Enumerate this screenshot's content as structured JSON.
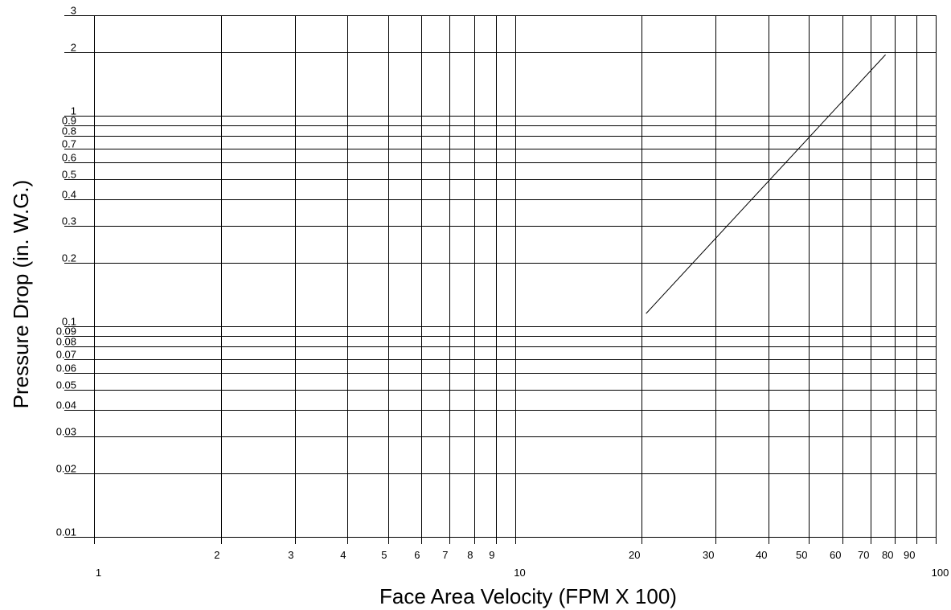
{
  "chart_data": {
    "type": "line",
    "xlabel": "Face Area Velocity (FPM X 100)",
    "ylabel": "Pressure Drop (in. W.G.)",
    "x_scale": "log",
    "y_scale": "log",
    "xlim": [
      1,
      100
    ],
    "ylim": [
      0.01,
      3
    ],
    "grid": true,
    "x_ticks": [
      {
        "value": 1,
        "label": "1"
      },
      {
        "value": 2,
        "label": "2"
      },
      {
        "value": 3,
        "label": "3"
      },
      {
        "value": 4,
        "label": "4"
      },
      {
        "value": 5,
        "label": "5"
      },
      {
        "value": 6,
        "label": "6"
      },
      {
        "value": 7,
        "label": "7"
      },
      {
        "value": 8,
        "label": "8"
      },
      {
        "value": 9,
        "label": "9"
      },
      {
        "value": 10,
        "label": "10"
      },
      {
        "value": 20,
        "label": "20"
      },
      {
        "value": 30,
        "label": "30"
      },
      {
        "value": 40,
        "label": "40"
      },
      {
        "value": 50,
        "label": "50"
      },
      {
        "value": 60,
        "label": "60"
      },
      {
        "value": 70,
        "label": "70"
      },
      {
        "value": 80,
        "label": "80"
      },
      {
        "value": 90,
        "label": "90"
      },
      {
        "value": 100,
        "label": "100"
      }
    ],
    "y_ticks": [
      {
        "value": 0.01,
        "label": "0.01"
      },
      {
        "value": 0.02,
        "label": "0.02"
      },
      {
        "value": 0.03,
        "label": "0.03"
      },
      {
        "value": 0.04,
        "label": "0.04"
      },
      {
        "value": 0.05,
        "label": "0.05"
      },
      {
        "value": 0.06,
        "label": "0.06"
      },
      {
        "value": 0.07,
        "label": "0.07"
      },
      {
        "value": 0.08,
        "label": "0.08"
      },
      {
        "value": 0.09,
        "label": "0.09"
      },
      {
        "value": 0.1,
        "label": "0.1"
      },
      {
        "value": 0.2,
        "label": "0.2"
      },
      {
        "value": 0.3,
        "label": "0.3"
      },
      {
        "value": 0.4,
        "label": "0.4"
      },
      {
        "value": 0.5,
        "label": "0.5"
      },
      {
        "value": 0.6,
        "label": "0.6"
      },
      {
        "value": 0.7,
        "label": "0.7"
      },
      {
        "value": 0.8,
        "label": "0.8"
      },
      {
        "value": 0.9,
        "label": "0.9"
      },
      {
        "value": 1,
        "label": "1"
      },
      {
        "value": 2,
        "label": "2"
      },
      {
        "value": 3,
        "label": "3"
      }
    ],
    "series": [
      {
        "x": [
          20.5,
          76
        ],
        "y": [
          0.115,
          1.95
        ]
      }
    ]
  }
}
